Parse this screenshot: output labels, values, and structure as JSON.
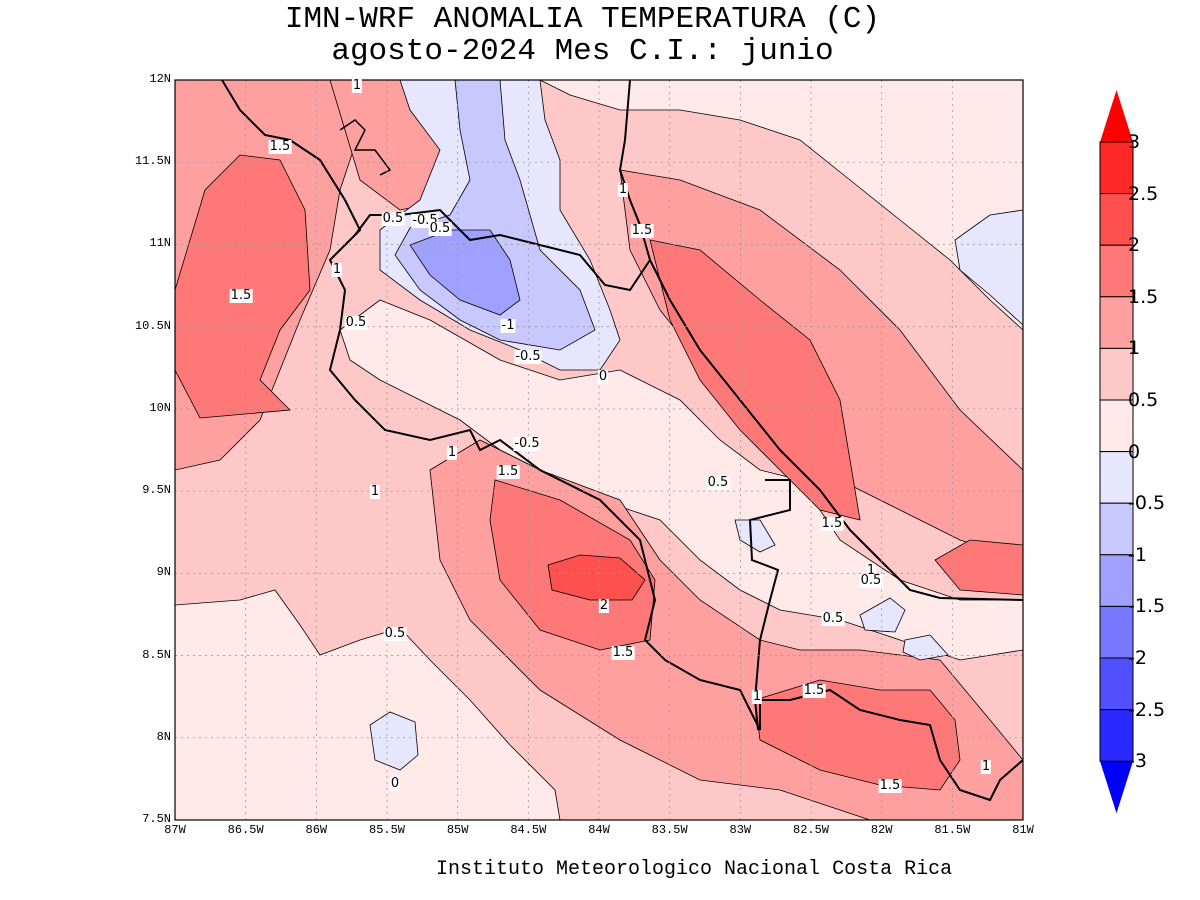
{
  "title": {
    "line1": "IMN-WRF  ANOMALIA TEMPERATURA (C)",
    "line2": "agosto-2024 Mes C.I.: junio"
  },
  "footer": "Instituto Meteorologico Nacional Costa Rica",
  "map": {
    "lat_ticks": [
      "12N",
      "11.5N",
      "11N",
      "10.5N",
      "10N",
      "9.5N",
      "9N",
      "8.5N",
      "8N",
      "7.5N"
    ],
    "lon_ticks": [
      "87W",
      "86.5W",
      "86W",
      "85.5W",
      "85W",
      "84.5W",
      "84W",
      "83.5W",
      "83W",
      "82.5W",
      "82W",
      "81.5W",
      "81W"
    ],
    "contour_labels": [
      "1",
      "1.5",
      "0.5",
      "-0.5",
      "0.5",
      "1",
      "1.5",
      "0.5",
      "-1",
      "-0.5",
      "0",
      "1",
      "1.5",
      "-0.5",
      "1",
      "1.5",
      "1",
      "0.5",
      "1.5",
      "1",
      "0.5",
      "2",
      "0.5",
      "0.5",
      "1.5",
      "1",
      "1.5",
      "0",
      "1.5",
      "1"
    ]
  },
  "colorbar": {
    "labels": [
      "3",
      "2.5",
      "2",
      "1.5",
      "1",
      "0.5",
      "0",
      "-0.5",
      "-1",
      "-1.5",
      "-2",
      "-2.5",
      "-3"
    ],
    "colors": [
      "#ff0000",
      "#ff2828",
      "#ff5050",
      "#ff7878",
      "#ffa0a0",
      "#ffc8c8",
      "#ffe9e9",
      "#e6e6ff",
      "#c8c8ff",
      "#a0a0ff",
      "#7878ff",
      "#5050ff",
      "#2828ff",
      "#0000ff"
    ]
  }
}
